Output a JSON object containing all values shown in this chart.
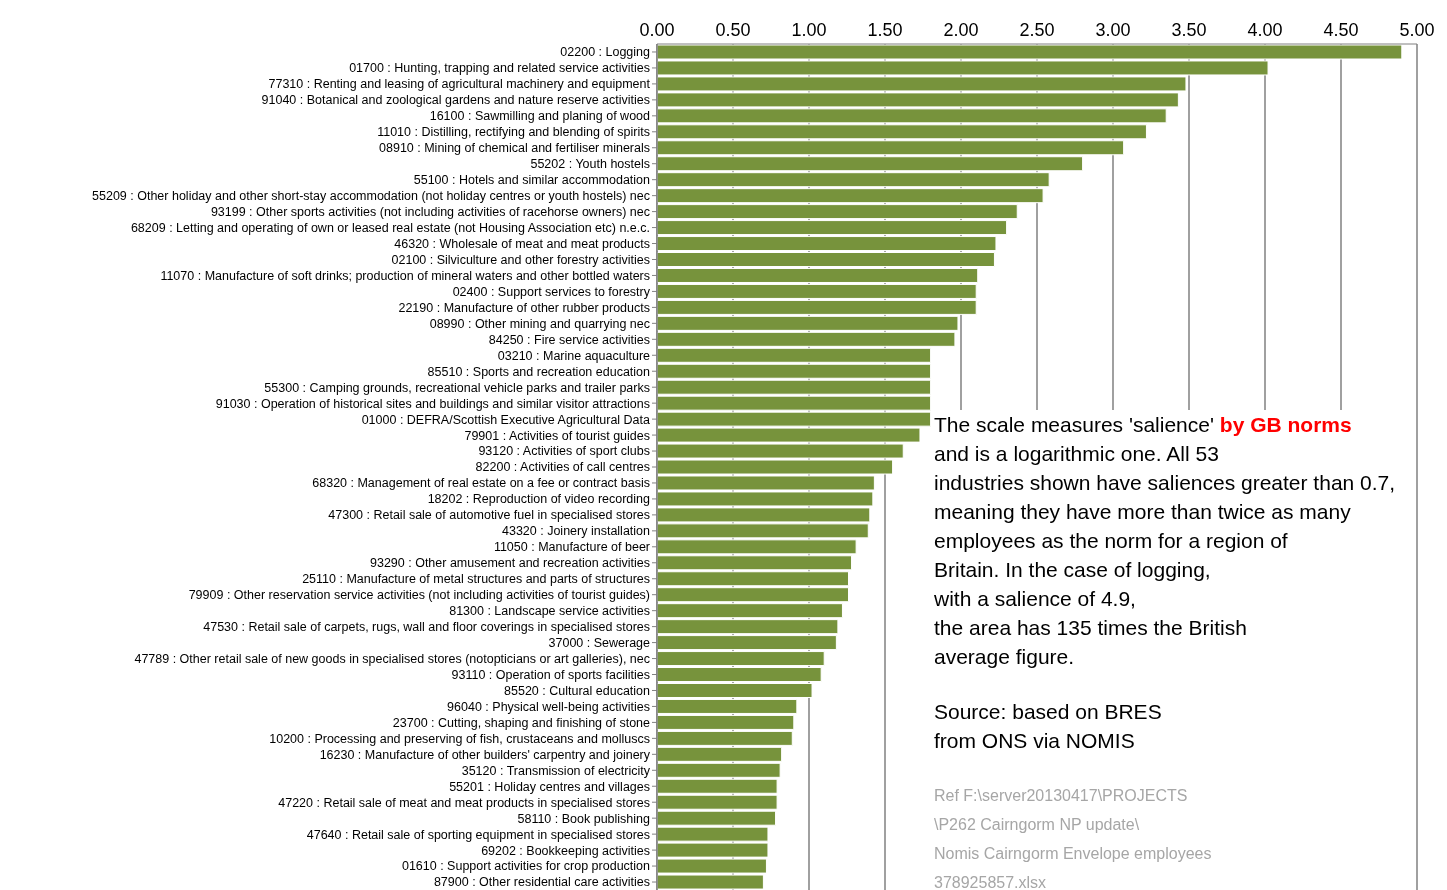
{
  "chart_data": {
    "type": "bar",
    "orientation": "horizontal",
    "categories": [
      "02200 : Logging",
      "01700 : Hunting, trapping and related service activities",
      "77310 : Renting and leasing of agricultural machinery and equipment",
      "91040 : Botanical and zoological gardens and nature reserve activities",
      "16100 : Sawmilling and planing of wood",
      "11010 : Distilling, rectifying and blending of spirits",
      "08910 : Mining of chemical and fertiliser minerals",
      "55202 : Youth hostels",
      "55100 : Hotels and similar accommodation",
      "55209 : Other holiday and other short-stay accommodation (not  holiday centres  or youth hostels) nec",
      "93199 : Other sports activities (not including activities of racehorse owners) nec",
      "68209 : Letting and operating of own or leased real estate (not Housing Association etc) n.e.c.",
      "46320 : Wholesale of meat and meat products",
      "02100 : Silviculture and other forestry activities",
      "11070 : Manufacture of soft drinks; production of mineral waters and other bottled waters",
      "02400 : Support services to forestry",
      "22190 : Manufacture of other rubber products",
      "08990 : Other mining and quarrying nec",
      "84250 : Fire service activities",
      "03210 : Marine aquaculture",
      "85510 : Sports and recreation education",
      "55300 : Camping grounds, recreational vehicle parks and trailer parks",
      "91030 : Operation of historical sites and buildings and similar visitor attractions",
      "01000 : DEFRA/Scottish Executive Agricultural Data",
      "79901 : Activities of tourist guides",
      "93120 : Activities of sport clubs",
      "82200 : Activities of call centres",
      "68320 : Management of real estate on a fee or contract basis",
      "18202 : Reproduction of video recording",
      "47300 : Retail sale of automotive fuel in specialised stores",
      "43320 : Joinery installation",
      "11050 : Manufacture of beer",
      "93290 : Other amusement and recreation activities",
      "25110 : Manufacture of metal structures and parts of structures",
      "79909 : Other reservation service activities (not including activities of tourist guides)",
      "81300 : Landscape service activities",
      "47530 : Retail sale of carpets, rugs, wall and floor coverings in specialised stores",
      "37000 : Sewerage",
      "47789 : Other retail sale of new goods in specialised stores (notopticians or  art galleries), nec",
      "93110 : Operation of sports facilities",
      "85520 : Cultural education",
      "96040 : Physical well-being activities",
      "23700 : Cutting, shaping and finishing of stone",
      "10200 : Processing and preserving of fish, crustaceans and molluscs",
      "16230 : Manufacture of other builders' carpentry and joinery",
      "35120 : Transmission of electricity",
      "55201 : Holiday centres and villages",
      "47220 : Retail sale of meat and meat products in specialised stores",
      "58110 : Book publishing",
      "47640 : Retail sale of sporting equipment in specialised stores",
      "69202 : Bookkeeping activities",
      "01610 : Support activities for crop production",
      "87900 : Other residential care activities"
    ],
    "values": [
      4.9,
      4.02,
      3.48,
      3.43,
      3.35,
      3.22,
      3.07,
      2.8,
      2.58,
      2.54,
      2.37,
      2.3,
      2.23,
      2.22,
      2.11,
      2.1,
      2.1,
      1.98,
      1.96,
      1.8,
      1.8,
      1.8,
      1.8,
      1.8,
      1.73,
      1.62,
      1.55,
      1.43,
      1.42,
      1.4,
      1.39,
      1.31,
      1.28,
      1.26,
      1.26,
      1.22,
      1.19,
      1.18,
      1.1,
      1.08,
      1.02,
      0.92,
      0.9,
      0.89,
      0.82,
      0.81,
      0.79,
      0.79,
      0.78,
      0.73,
      0.73,
      0.72,
      0.7
    ],
    "color": "#77933c",
    "xlim": [
      0,
      5
    ],
    "xticks": [
      {
        "value": 0,
        "label": "0.00"
      },
      {
        "value": 0.5,
        "label": "0.50"
      },
      {
        "value": 1,
        "label": "1.00"
      },
      {
        "value": 1.5,
        "label": "1.50"
      },
      {
        "value": 2,
        "label": "2.00"
      },
      {
        "value": 2.5,
        "label": "2.50"
      },
      {
        "value": 3,
        "label": "3.00"
      },
      {
        "value": 3.5,
        "label": "3.50"
      },
      {
        "value": 4,
        "label": "4.00"
      },
      {
        "value": 4.5,
        "label": "4.50"
      },
      {
        "value": 5,
        "label": "5.00"
      }
    ],
    "grid": "x",
    "annotations": [
      "The scale measures 'salience' ",
      "by GB norms",
      "\nand is a logarithmic one.   All 53\nindustries shown have  saliences  greater than 0.7,\nmeaning they have more than twice as many\nemployees as the norm for a region of\nBritain.  In the case of logging,\nwith a salience of 4.9,\nthe area has 135 times the British\n average figure.",
      "Source: based on BRES\nfrom ONS via NOMIS",
      "Ref F:\\server20130417\\PROJECTS\n\\P262 Cairngorm NP update\\\nNomis Cairngorm Envelope employees\n378925857.xlsx"
    ]
  }
}
